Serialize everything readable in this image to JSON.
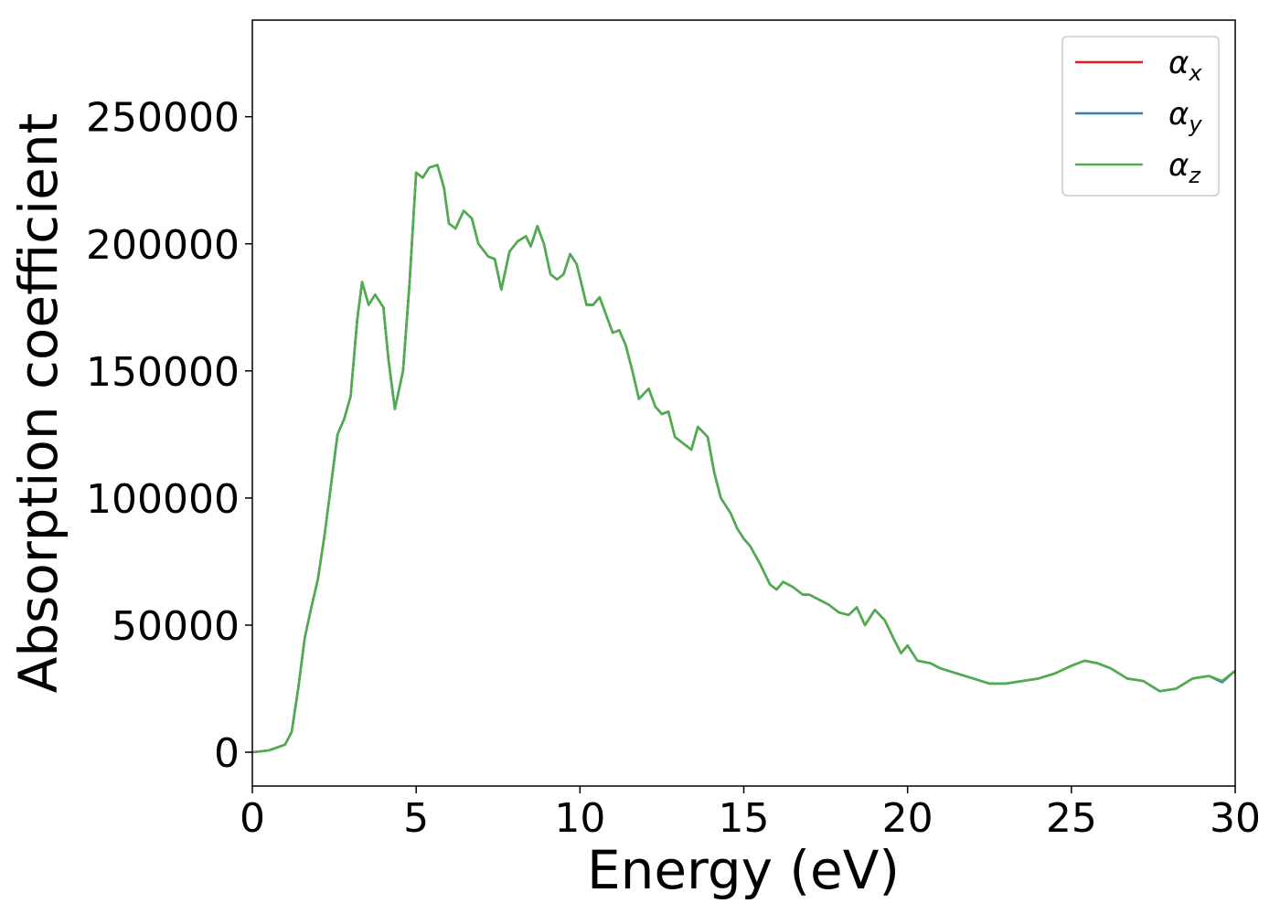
{
  "chart_data": {
    "type": "line",
    "xlabel": "Energy (eV)",
    "ylabel": "Absorption coefficient",
    "x": [
      0,
      0.5,
      1.0,
      1.2,
      1.4,
      1.6,
      1.8,
      2.0,
      2.2,
      2.4,
      2.6,
      2.8,
      3.0,
      3.2,
      3.35,
      3.55,
      3.75,
      4.0,
      4.15,
      4.35,
      4.6,
      4.8,
      5.0,
      5.2,
      5.4,
      5.65,
      5.85,
      6.0,
      6.2,
      6.45,
      6.7,
      6.9,
      7.2,
      7.4,
      7.6,
      7.85,
      8.1,
      8.35,
      8.5,
      8.7,
      8.9,
      9.1,
      9.3,
      9.5,
      9.7,
      9.9,
      10.2,
      10.4,
      10.6,
      10.8,
      11.0,
      11.2,
      11.4,
      11.6,
      11.8,
      12.1,
      12.3,
      12.5,
      12.7,
      12.9,
      13.2,
      13.4,
      13.6,
      13.9,
      14.1,
      14.3,
      14.6,
      14.8,
      15.0,
      15.2,
      15.5,
      15.8,
      16.0,
      16.2,
      16.5,
      16.8,
      17.0,
      17.3,
      17.6,
      17.9,
      18.2,
      18.45,
      18.7,
      19.0,
      19.3,
      19.6,
      19.8,
      20.0,
      20.3,
      20.7,
      21.0,
      21.5,
      22.0,
      22.5,
      23.0,
      23.5,
      24.0,
      24.5,
      25.0,
      25.4,
      25.8,
      26.2,
      26.7,
      27.2,
      27.7,
      28.2,
      28.7,
      29.2,
      29.6,
      30.0
    ],
    "series": [
      {
        "name": "αx",
        "color": "#e41a1c",
        "values": [
          0,
          700,
          3000,
          8000,
          25000,
          45000,
          57000,
          68000,
          85000,
          105000,
          125000,
          131000,
          140000,
          170000,
          185000,
          176000,
          180000,
          175000,
          155000,
          135000,
          150000,
          185000,
          228000,
          226000,
          230000,
          231000,
          222000,
          208000,
          206000,
          213000,
          210000,
          200000,
          195000,
          194000,
          182000,
          197000,
          201000,
          203000,
          199000,
          207000,
          200000,
          188000,
          186000,
          188000,
          196000,
          192000,
          176000,
          176000,
          179000,
          172000,
          165000,
          166000,
          160000,
          150000,
          139000,
          143000,
          136000,
          133000,
          134000,
          124000,
          121000,
          119000,
          128000,
          124000,
          110000,
          100000,
          94000,
          88000,
          84000,
          81000,
          74000,
          66000,
          64000,
          67000,
          65000,
          62000,
          62000,
          60000,
          58000,
          55000,
          54000,
          57000,
          50000,
          56000,
          52000,
          44000,
          39000,
          42000,
          36000,
          35000,
          33000,
          31000,
          29000,
          27000,
          27000,
          28000,
          29000,
          31000,
          34000,
          36000,
          35000,
          33000,
          29000,
          28000,
          24000,
          25000,
          29000,
          30000,
          28000,
          32000
        ]
      },
      {
        "name": "αy",
        "color": "#377eb8",
        "values": [
          0,
          700,
          3000,
          8000,
          25000,
          45000,
          57000,
          68000,
          85000,
          105000,
          125000,
          131000,
          140000,
          170000,
          185000,
          176000,
          180000,
          175000,
          155000,
          135000,
          150000,
          185000,
          228000,
          226000,
          230000,
          231000,
          222000,
          208000,
          206000,
          213000,
          210000,
          200000,
          195000,
          194000,
          182000,
          197000,
          201000,
          203000,
          199000,
          207000,
          200000,
          188000,
          186000,
          188000,
          196000,
          192000,
          176000,
          176000,
          179000,
          172000,
          165000,
          166000,
          160000,
          150000,
          139000,
          143000,
          136000,
          133000,
          134000,
          124000,
          121000,
          119000,
          128000,
          124000,
          110000,
          100000,
          94000,
          88000,
          84000,
          81000,
          74000,
          66000,
          64000,
          67000,
          65000,
          62000,
          62000,
          60000,
          58000,
          55000,
          54000,
          57000,
          50000,
          56000,
          52000,
          44000,
          39000,
          42000,
          36000,
          35000,
          33000,
          31000,
          29000,
          27000,
          27000,
          28000,
          29000,
          31000,
          34000,
          36000,
          35000,
          33000,
          29000,
          28000,
          24000,
          25000,
          29000,
          30000,
          27500,
          32000
        ]
      },
      {
        "name": "αz",
        "color": "#4daf4a",
        "values": [
          0,
          700,
          3000,
          8000,
          25000,
          45000,
          57000,
          68000,
          85000,
          105000,
          125000,
          131000,
          140000,
          170000,
          185000,
          176000,
          180000,
          175000,
          155000,
          135000,
          150000,
          185000,
          228000,
          226000,
          230000,
          231000,
          222000,
          208000,
          206000,
          213000,
          210000,
          200000,
          195000,
          194000,
          182000,
          197000,
          201000,
          203000,
          199000,
          207000,
          200000,
          188000,
          186000,
          188000,
          196000,
          192000,
          176000,
          176000,
          179000,
          172000,
          165000,
          166000,
          160000,
          150000,
          139000,
          143000,
          136000,
          133000,
          134000,
          124000,
          121000,
          119000,
          128000,
          124000,
          110000,
          100000,
          94000,
          88000,
          84000,
          81000,
          74000,
          66000,
          64000,
          67000,
          65000,
          62000,
          62000,
          60000,
          58000,
          55000,
          54000,
          57000,
          50000,
          56000,
          52000,
          44000,
          39000,
          42000,
          36000,
          35000,
          33000,
          31000,
          29000,
          27000,
          27000,
          28000,
          29000,
          31000,
          34000,
          36000,
          35000,
          33000,
          29000,
          28000,
          24000,
          25000,
          29000,
          30000,
          28000,
          32000
        ]
      }
    ],
    "xlim": [
      0,
      30
    ],
    "xticks": [
      0,
      5,
      10,
      15,
      20,
      25,
      30
    ],
    "ylim": [
      -13300,
      288000
    ],
    "yticks": [
      0,
      50000,
      100000,
      150000,
      200000,
      250000
    ],
    "legend": "upper right"
  }
}
